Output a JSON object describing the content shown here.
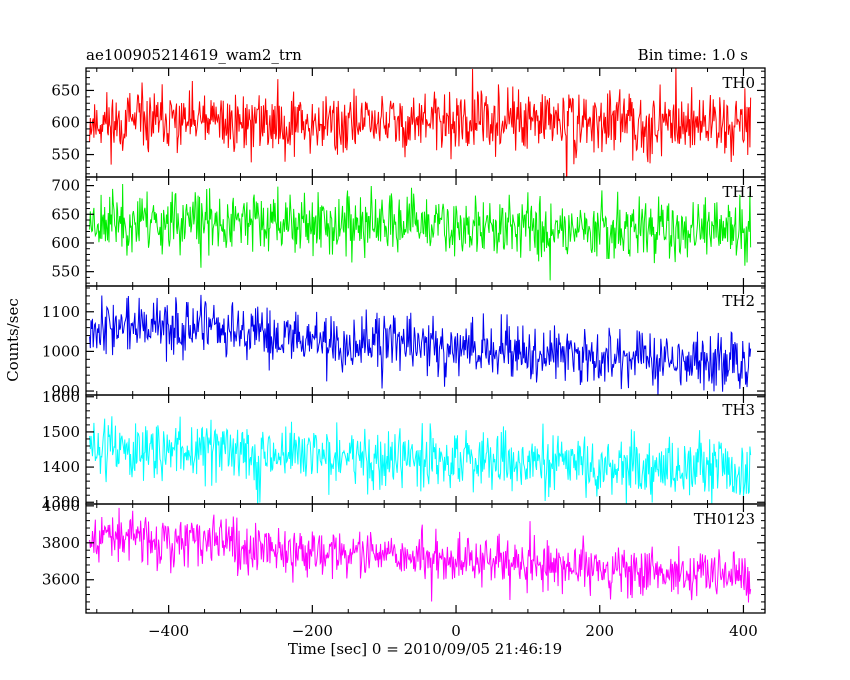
{
  "header": {
    "left_title": "ae100905214619_wam2_trn",
    "right_title": "Bin time: 1.0 s"
  },
  "chart_data": {
    "type": "line",
    "title": "ae100905214619_wam2_trn",
    "subtitle": "Bin time: 1.0 s",
    "xlabel": "Time [sec] 0 = 2010/09/05 21:46:19",
    "ylabel": "Counts/sec",
    "xlim": [
      -515,
      430
    ],
    "x_range_data": [
      -510,
      410
    ],
    "x_ticks": [
      -400,
      -200,
      0,
      200,
      400
    ],
    "x_tick_labels": [
      "−400",
      "−200",
      "0",
      "200",
      "400"
    ],
    "panels": [
      {
        "name": "TH0",
        "color": "#ff0000",
        "ylim": [
          515,
          685
        ],
        "y_ticks": [
          550,
          600,
          650
        ],
        "y_tick_labels": [
          "550",
          "600",
          "650"
        ],
        "trend": [
          600,
          600
        ],
        "spread": 24,
        "seed": 11
      },
      {
        "name": "TH1",
        "color": "#00ee00",
        "ylim": [
          525,
          715
        ],
        "y_ticks": [
          550,
          600,
          650,
          700
        ],
        "y_tick_labels": [
          "550",
          "600",
          "650",
          "700"
        ],
        "trend": [
          640,
          620
        ],
        "spread": 26,
        "seed": 23
      },
      {
        "name": "TH2",
        "color": "#0000ee",
        "ylim": [
          890,
          1165
        ],
        "y_ticks": [
          900,
          1000,
          1100
        ],
        "y_tick_labels": [
          "900",
          "1000",
          "1100"
        ],
        "trend": [
          1070,
          965
        ],
        "spread": 35,
        "seed": 37
      },
      {
        "name": "TH3",
        "color": "#00ffff",
        "ylim": [
          1295,
          1605
        ],
        "y_ticks": [
          1300,
          1400,
          1500,
          1600
        ],
        "y_tick_labels": [
          "1300",
          "1400",
          "1500",
          "1600"
        ],
        "trend": [
          1455,
          1385
        ],
        "spread": 42,
        "seed": 51
      },
      {
        "name": "TH0123",
        "color": "#ff00ff",
        "ylim": [
          3420,
          4010
        ],
        "y_ticks": [
          3600,
          3800,
          4000
        ],
        "y_tick_labels": [
          "3600",
          "3800",
          "4000"
        ],
        "trend": [
          3840,
          3610
        ],
        "spread": 65,
        "seed": 67
      }
    ]
  }
}
